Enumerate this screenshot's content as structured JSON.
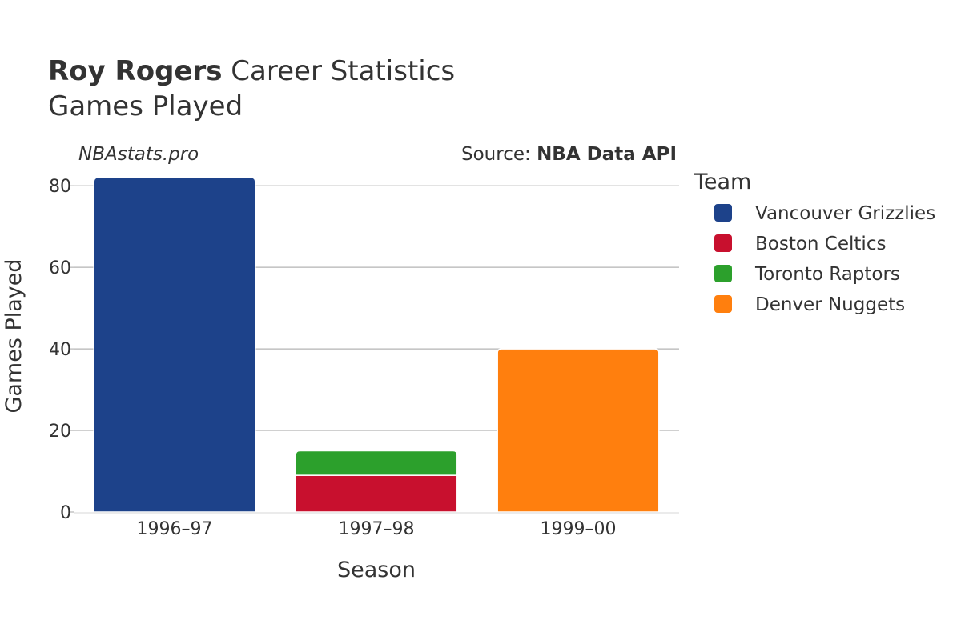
{
  "header": {
    "player_name": "Roy Rogers",
    "title_rest": "Career Statistics",
    "subtitle": "Games Played",
    "site": "NBAstats.pro",
    "source_label": "Source: ",
    "source_name": "NBA Data API"
  },
  "chart_data": {
    "type": "bar",
    "stacked": true,
    "title": "Roy Rogers Career Statistics",
    "subtitle": "Games Played",
    "xlabel": "Season",
    "ylabel": "Games Played",
    "ylim": [
      0,
      82
    ],
    "yticks": [
      0,
      20,
      40,
      60,
      80
    ],
    "categories": [
      "1996–97",
      "1997–98",
      "1999–00"
    ],
    "legend_title": "Team",
    "legend_position": "right",
    "grid": true,
    "series": [
      {
        "name": "Vancouver Grizzlies",
        "color": "#1d428a",
        "values": [
          82,
          0,
          0
        ]
      },
      {
        "name": "Boston Celtics",
        "color": "#c8102e",
        "values": [
          0,
          9,
          0
        ]
      },
      {
        "name": "Toronto Raptors",
        "color": "#2ca02c",
        "values": [
          0,
          6,
          0
        ]
      },
      {
        "name": "Denver Nuggets",
        "color": "#ff7f0e",
        "values": [
          0,
          0,
          40
        ]
      }
    ]
  }
}
